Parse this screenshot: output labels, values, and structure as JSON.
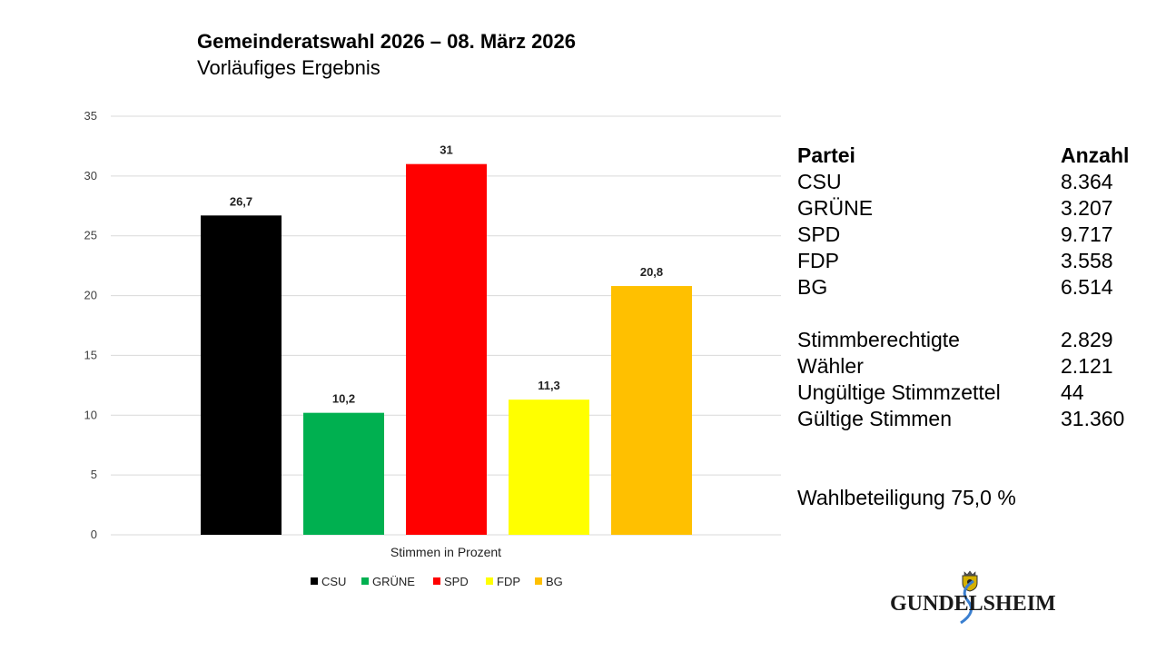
{
  "header": {
    "title": "Gemeinderatswahl 2026 – 08. März 2026",
    "subtitle": "Vorläufiges Ergebnis"
  },
  "chart_data": {
    "type": "bar",
    "categories": [
      "Stimmen in Prozent"
    ],
    "xlabel": "Stimmen in Prozent",
    "ylabel": "",
    "ylim": [
      0,
      35
    ],
    "yticks": [
      0,
      5,
      10,
      15,
      20,
      25,
      30,
      35
    ],
    "grid": true,
    "legend_position": "bottom",
    "series": [
      {
        "name": "CSU",
        "values": [
          26.7
        ],
        "label": "26,7",
        "color": "#000000"
      },
      {
        "name": "GRÜNE",
        "values": [
          10.2
        ],
        "label": "10,2",
        "color": "#00b050"
      },
      {
        "name": "SPD",
        "values": [
          31
        ],
        "label": "31",
        "color": "#ff0000"
      },
      {
        "name": "FDP",
        "values": [
          11.3
        ],
        "label": "11,3",
        "color": "#ffff00"
      },
      {
        "name": "BG",
        "values": [
          20.8
        ],
        "label": "20,8",
        "color": "#ffc000"
      }
    ]
  },
  "results": {
    "header_party": "Partei",
    "header_count": "Anzahl",
    "parties": [
      {
        "name": "CSU",
        "count": "8.364"
      },
      {
        "name": "GRÜNE",
        "count": "3.207"
      },
      {
        "name": "SPD",
        "count": "9.717"
      },
      {
        "name": "FDP",
        "count": "3.558"
      },
      {
        "name": "BG",
        "count": "6.514"
      }
    ],
    "stats": [
      {
        "name": "Stimmberechtigte",
        "value": "2.829"
      },
      {
        "name": "Wähler",
        "value": "2.121"
      },
      {
        "name": "Ungültige Stimmzettel",
        "value": "44"
      },
      {
        "name": "Gültige Stimmen",
        "value": "31.360"
      }
    ],
    "turnout": "Wahlbeteiligung 75,0 %"
  },
  "logo": {
    "text": "GUNDELSHEIM"
  }
}
